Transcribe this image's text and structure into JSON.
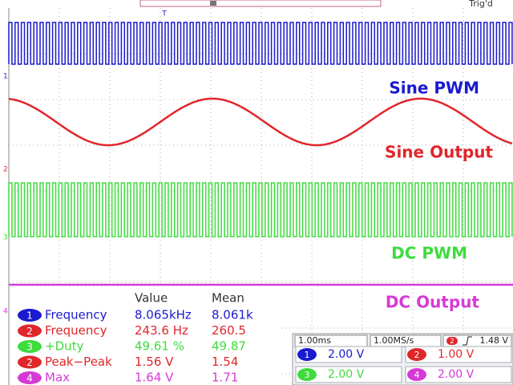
{
  "screen": {
    "trigger_status": "Trig'd",
    "trigger_marker": "T",
    "channel_markers": [
      "1",
      "2",
      "3",
      "4"
    ],
    "labels": [
      "Sine PWM",
      "Sine Output",
      "DC PWM",
      "DC Output"
    ]
  },
  "measurements": {
    "headers": [
      "Value",
      "Mean"
    ],
    "rows": [
      [
        "1",
        "Frequency",
        "8.065kHz",
        "8.061k"
      ],
      [
        "2",
        "Frequency",
        "243.6 Hz",
        "260.5"
      ],
      [
        "3",
        "+Duty",
        "49.61 %",
        "49.87"
      ],
      [
        "2",
        "Peak−Peak",
        "1.56 V",
        "1.54"
      ],
      [
        "4",
        "Max",
        "1.64 V",
        "1.71"
      ]
    ]
  },
  "status": {
    "timebase": "1.00ms",
    "sample_rate": "1.00MS/s",
    "trigger_channel": "2",
    "trigger_level": "1.48 V",
    "channels": [
      [
        "1",
        "2.00 V"
      ],
      [
        "2",
        "1.00 V"
      ],
      [
        "3",
        "2.00 V"
      ],
      [
        "4",
        "2.00 V"
      ]
    ]
  }
}
